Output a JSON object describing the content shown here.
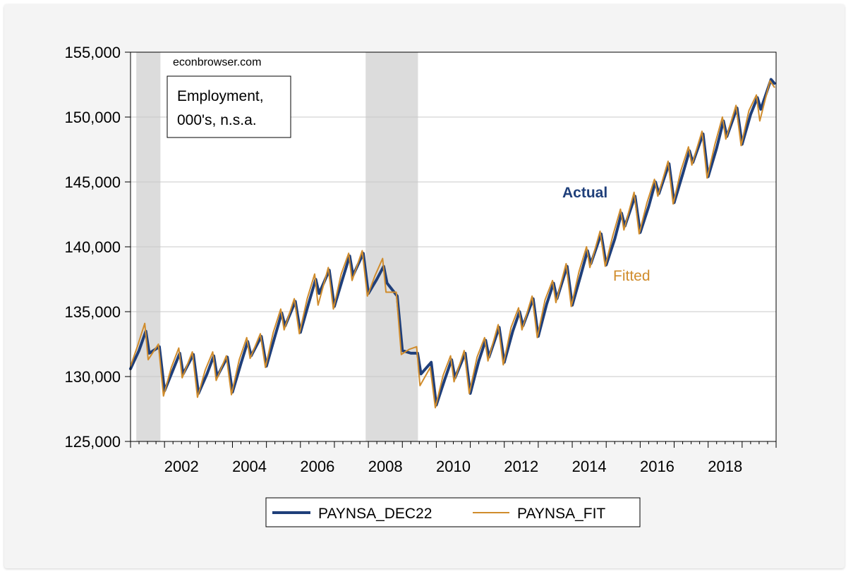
{
  "chart_data": {
    "type": "line",
    "watermark": "econbrowser.com",
    "title_box": [
      "Employment,",
      "000's, n.s.a."
    ],
    "annotations": [
      {
        "text": "Actual",
        "color": "#1f3f7a"
      },
      {
        "text": "Fitted",
        "color": "#d08c2c"
      }
    ],
    "xlim": [
      2001.0,
      2020.0
    ],
    "ylim": [
      125000,
      155000
    ],
    "y_ticks": [
      125000,
      130000,
      135000,
      140000,
      145000,
      150000,
      155000
    ],
    "y_tick_labels": [
      "125,000",
      "130,000",
      "135,000",
      "140,000",
      "145,000",
      "150,000",
      "155,000"
    ],
    "x_ticks": [
      2002,
      2004,
      2006,
      2008,
      2010,
      2012,
      2014,
      2016,
      2018
    ],
    "x_tick_labels": [
      "2002",
      "2004",
      "2006",
      "2008",
      "2010",
      "2012",
      "2014",
      "2016",
      "2018"
    ],
    "recessions": [
      [
        2001.17,
        2001.88
      ],
      [
        2007.92,
        2009.46
      ]
    ],
    "series": [
      {
        "name": "PAYNSA_DEC22",
        "color": "#1f3f7a",
        "x": [
          2001.0,
          2001.25,
          2001.45,
          2001.55,
          2001.85,
          2002.0,
          2002.25,
          2002.45,
          2002.55,
          2002.85,
          2003.0,
          2003.25,
          2003.45,
          2003.55,
          2003.85,
          2004.0,
          2004.25,
          2004.45,
          2004.55,
          2004.85,
          2005.0,
          2005.25,
          2005.45,
          2005.55,
          2005.85,
          2006.0,
          2006.25,
          2006.45,
          2006.55,
          2006.85,
          2007.0,
          2007.25,
          2007.45,
          2007.55,
          2007.85,
          2008.0,
          2008.25,
          2008.45,
          2008.55,
          2008.85,
          2009.0,
          2009.25,
          2009.45,
          2009.55,
          2009.85,
          2010.0,
          2010.25,
          2010.45,
          2010.55,
          2010.85,
          2011.0,
          2011.25,
          2011.45,
          2011.55,
          2011.85,
          2012.0,
          2012.25,
          2012.45,
          2012.55,
          2012.85,
          2013.0,
          2013.25,
          2013.45,
          2013.55,
          2013.85,
          2014.0,
          2014.25,
          2014.45,
          2014.55,
          2014.85,
          2015.0,
          2015.25,
          2015.45,
          2015.55,
          2015.85,
          2016.0,
          2016.25,
          2016.45,
          2016.55,
          2016.85,
          2017.0,
          2017.25,
          2017.45,
          2017.55,
          2017.85,
          2018.0,
          2018.25,
          2018.45,
          2018.55,
          2018.85,
          2019.0,
          2019.25,
          2019.45,
          2019.55,
          2019.85,
          2019.95
        ],
        "values": [
          130600,
          132000,
          133500,
          131800,
          132300,
          128900,
          130500,
          131800,
          130200,
          131700,
          128700,
          130200,
          131600,
          130000,
          131500,
          128800,
          131000,
          132700,
          131600,
          133100,
          130800,
          133100,
          134900,
          133900,
          135800,
          133400,
          135700,
          137500,
          136400,
          138200,
          135400,
          137600,
          139300,
          137800,
          139500,
          136400,
          137500,
          138500,
          137200,
          136200,
          132000,
          131800,
          131800,
          130200,
          131100,
          127800,
          129800,
          131300,
          129900,
          131800,
          128700,
          131200,
          132800,
          131500,
          133800,
          131100,
          133500,
          135000,
          133900,
          136000,
          133100,
          135600,
          137200,
          136000,
          138500,
          135500,
          137800,
          139700,
          138700,
          141000,
          138600,
          140600,
          142600,
          141600,
          143900,
          141100,
          143100,
          145000,
          144100,
          146400,
          143400,
          145600,
          147400,
          146500,
          148700,
          145400,
          147600,
          149700,
          148500,
          150700,
          147900,
          150200,
          151500,
          150600,
          152900,
          152600
        ]
      },
      {
        "name": "PAYNSA_FIT",
        "color": "#d08c2c",
        "x": [
          2001.0,
          2001.2,
          2001.42,
          2001.52,
          2001.82,
          2001.97,
          2002.2,
          2002.42,
          2002.52,
          2002.82,
          2002.97,
          2003.2,
          2003.42,
          2003.52,
          2003.82,
          2003.97,
          2004.2,
          2004.42,
          2004.52,
          2004.82,
          2004.97,
          2005.2,
          2005.42,
          2005.52,
          2005.82,
          2005.97,
          2006.2,
          2006.42,
          2006.52,
          2006.82,
          2006.97,
          2007.2,
          2007.42,
          2007.52,
          2007.82,
          2007.97,
          2008.2,
          2008.42,
          2008.52,
          2008.82,
          2008.97,
          2009.2,
          2009.42,
          2009.52,
          2009.82,
          2009.97,
          2010.2,
          2010.42,
          2010.52,
          2010.82,
          2010.97,
          2011.2,
          2011.42,
          2011.52,
          2011.82,
          2011.97,
          2012.2,
          2012.42,
          2012.52,
          2012.82,
          2012.97,
          2013.2,
          2013.42,
          2013.52,
          2013.82,
          2013.97,
          2014.2,
          2014.42,
          2014.52,
          2014.82,
          2014.97,
          2015.2,
          2015.42,
          2015.52,
          2015.82,
          2015.97,
          2016.2,
          2016.42,
          2016.52,
          2016.82,
          2016.97,
          2017.2,
          2017.42,
          2017.52,
          2017.82,
          2017.97,
          2018.2,
          2018.42,
          2018.52,
          2018.82,
          2018.97,
          2019.2,
          2019.42,
          2019.52,
          2019.82,
          2019.95
        ],
        "values": [
          130800,
          132300,
          134100,
          131300,
          132500,
          128500,
          130700,
          132200,
          129900,
          131900,
          128400,
          130500,
          131900,
          129700,
          131600,
          128600,
          131300,
          133000,
          131400,
          133300,
          130700,
          133400,
          135200,
          133600,
          136000,
          133300,
          136000,
          137900,
          135500,
          138400,
          135200,
          137900,
          139500,
          137400,
          139700,
          136200,
          137800,
          139100,
          136500,
          136500,
          131700,
          132100,
          132300,
          129300,
          130700,
          127600,
          130100,
          131600,
          129600,
          132000,
          128700,
          131500,
          133000,
          131200,
          134000,
          130900,
          133800,
          135300,
          133600,
          136200,
          133000,
          135900,
          137400,
          135700,
          138700,
          135400,
          138100,
          140000,
          138400,
          141200,
          138500,
          140900,
          142900,
          141300,
          144200,
          141000,
          143400,
          145200,
          143900,
          146600,
          143300,
          145900,
          147700,
          146300,
          148900,
          145300,
          147900,
          150000,
          148300,
          150900,
          147800,
          150500,
          151700,
          149700,
          152800,
          152300
        ]
      }
    ],
    "legend_position": "bottom-center"
  }
}
